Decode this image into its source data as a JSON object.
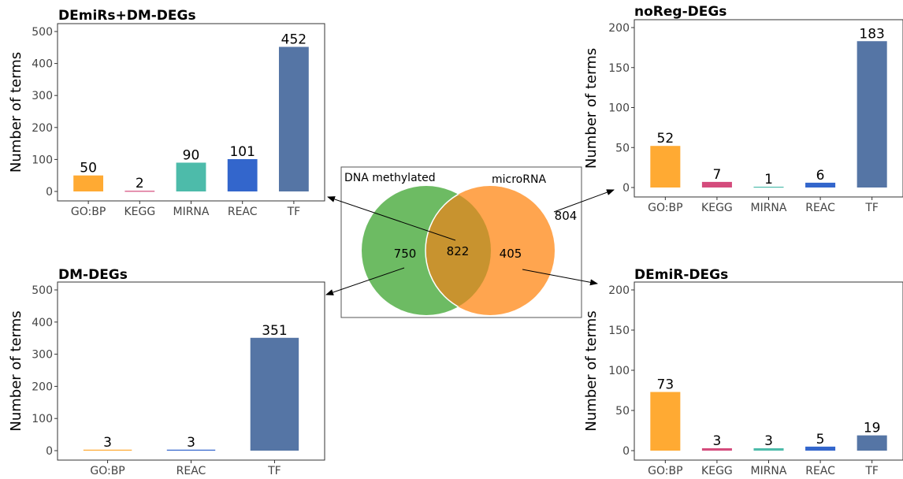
{
  "chart_data": [
    {
      "type": "bar",
      "title": "DEmiRs+DM-DEGs",
      "ylabel": "Number of terms",
      "xlabel": "",
      "categories": [
        "GO:BP",
        "KEGG",
        "MIRNA",
        "REAC",
        "TF"
      ],
      "values": [
        50,
        2,
        90,
        101,
        452
      ],
      "colors": [
        "#FFAA33",
        "#D44C7C",
        "#4DBBAA",
        "#3366CC",
        "#5575A5"
      ],
      "ylim": [
        0,
        500
      ],
      "yticks": [
        0,
        100,
        200,
        300,
        400,
        500
      ],
      "grid": false
    },
    {
      "type": "bar",
      "title": "noReg-DEGs",
      "ylabel": "Number of terms",
      "xlabel": "",
      "categories": [
        "GO:BP",
        "KEGG",
        "MIRNA",
        "REAC",
        "TF"
      ],
      "values": [
        52,
        7,
        1,
        6,
        183
      ],
      "colors": [
        "#FFAA33",
        "#D44C7C",
        "#4DBBAA",
        "#3366CC",
        "#5575A5"
      ],
      "ylim": [
        0,
        200
      ],
      "yticks": [
        0,
        50,
        100,
        150,
        200
      ],
      "grid": false
    },
    {
      "type": "bar",
      "title": "DM-DEGs",
      "ylabel": "Number of terms",
      "xlabel": "",
      "categories": [
        "GO:BP",
        "REAC",
        "TF"
      ],
      "values": [
        3,
        3,
        351
      ],
      "colors": [
        "#FFAA33",
        "#3366CC",
        "#5575A5"
      ],
      "ylim": [
        0,
        500
      ],
      "yticks": [
        0,
        100,
        200,
        300,
        400,
        500
      ],
      "grid": false
    },
    {
      "type": "bar",
      "title": "DEmiR-DEGs",
      "ylabel": "Number of terms",
      "xlabel": "",
      "categories": [
        "GO:BP",
        "KEGG",
        "MIRNA",
        "REAC",
        "TF"
      ],
      "values": [
        73,
        3,
        3,
        5,
        19
      ],
      "colors": [
        "#FFAA33",
        "#D44C7C",
        "#4DBBAA",
        "#3366CC",
        "#5575A5"
      ],
      "ylim": [
        0,
        200
      ],
      "yticks": [
        0,
        50,
        100,
        150,
        200
      ],
      "grid": false
    }
  ],
  "venn": {
    "sets": [
      {
        "label": "DNA methylated",
        "color": "#6DBB63"
      },
      {
        "label": "microRNA",
        "color": "#FFA54F"
      }
    ],
    "overlap_color": "#C8932F",
    "counts": {
      "dna_only": "750",
      "both": "822",
      "microrna_only": "405",
      "neither": "804"
    }
  }
}
